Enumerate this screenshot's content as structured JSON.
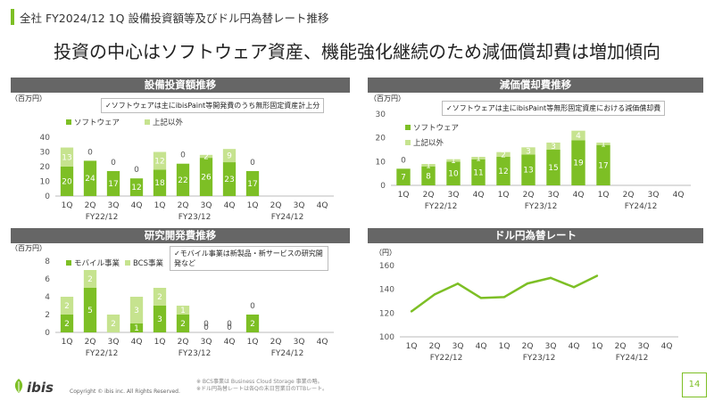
{
  "header": {
    "title": "全社 FY2024/12 1Q 設備投資額等及びドル円為替レート推移"
  },
  "headline": "投資の中心はソフトウェア資産、機能強化継続のため減価償却費は増加傾向",
  "colors": {
    "dark": "#7dbf25",
    "light": "#c6e38f",
    "line": "#7dbf25"
  },
  "quarters": [
    "1Q",
    "2Q",
    "3Q",
    "4Q",
    "1Q",
    "2Q",
    "3Q",
    "4Q",
    "1Q",
    "2Q",
    "3Q",
    "4Q"
  ],
  "fy_labels": [
    "FY22/12",
    "FY23/12",
    "FY24/12"
  ],
  "chart_data": [
    {
      "id": "capex",
      "type": "bar",
      "title": "設備投資額推移",
      "unit": "（百万円）",
      "note": "✓ソフトウェアは主にibisPaint等開発費のうち無形固定資産計上分",
      "ylim": [
        0,
        40
      ],
      "ticks": [
        0,
        10,
        20,
        30,
        40
      ],
      "series": [
        {
          "name": "ソフトウェア",
          "values": [
            20,
            24,
            17,
            12,
            18,
            22,
            26,
            23,
            17,
            null,
            null,
            null
          ]
        },
        {
          "name": "上記以外",
          "values": [
            13,
            0,
            0,
            0,
            12,
            0,
            2,
            9,
            0,
            null,
            null,
            null
          ]
        }
      ]
    },
    {
      "id": "depr",
      "type": "bar",
      "title": "減価償却費推移",
      "unit": "（百万円）",
      "note": "✓ソフトウェアは主にibisPaint等無形固定資産における減価償却費",
      "ylim": [
        0,
        30
      ],
      "ticks": [
        0,
        10,
        20,
        30
      ],
      "series": [
        {
          "name": "ソフトウェア",
          "values": [
            7,
            8,
            10,
            11,
            12,
            13,
            15,
            19,
            17,
            null,
            null,
            null
          ]
        },
        {
          "name": "上記以外",
          "values": [
            0,
            1,
            1,
            1,
            2,
            3,
            3,
            4,
            1,
            null,
            null,
            null
          ]
        }
      ]
    },
    {
      "id": "rnd",
      "type": "bar",
      "title": "研究開発費推移",
      "unit": "（百万円）",
      "note": "✓モバイル事業は新製品・新サービスの研究開発など",
      "ylim": [
        0,
        8
      ],
      "ticks": [
        0,
        2,
        4,
        6,
        8
      ],
      "series": [
        {
          "name": "モバイル事業",
          "values": [
            2,
            5,
            0,
            1,
            3,
            2,
            0,
            0,
            2,
            null,
            null,
            null
          ]
        },
        {
          "name": "BCS事業",
          "values": [
            2,
            2,
            2,
            3,
            2,
            1,
            0,
            0,
            0,
            null,
            null,
            null
          ]
        }
      ]
    },
    {
      "id": "fx",
      "type": "line",
      "title": "ドル円為替レート",
      "unit": "（円）",
      "ylim": [
        100,
        160
      ],
      "ticks": [
        100,
        120,
        140,
        160
      ],
      "series": [
        {
          "name": "ドル円",
          "values": [
            121.4,
            135.7,
            144.8,
            132.7,
            133.5,
            144.9,
            149.6,
            141.8,
            151.4,
            null,
            null,
            null
          ]
        }
      ]
    }
  ],
  "footer": {
    "copyright": "Copyright © ibis inc. All Rights Reserved.",
    "footnote1": "※ BCS事業は Business Cloud Storage 事業の略。",
    "footnote2": "※ドル円為替レートは各Qの末日営業日のTTBレート。",
    "page": "14",
    "logo": "ibis"
  }
}
